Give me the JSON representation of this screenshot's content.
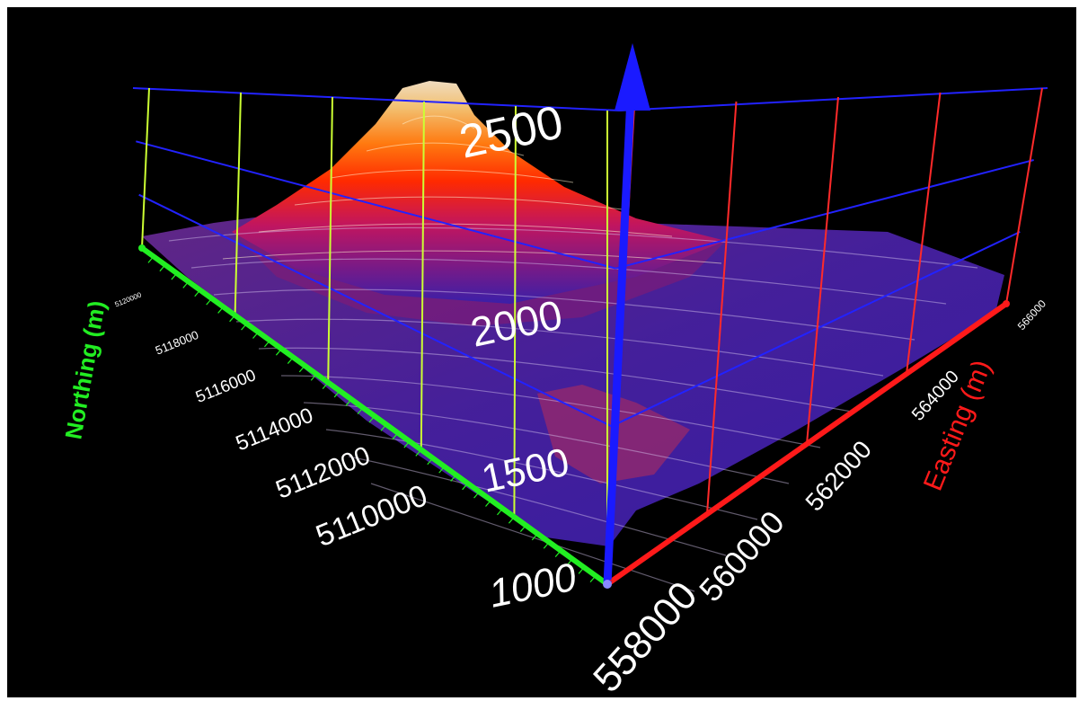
{
  "colors": {
    "background": "#000000",
    "northing_axis": "#22ee22",
    "easting_axis": "#ff1a1a",
    "elevation_axis": "#1a1aff",
    "northing_grid": "#ccff33",
    "easting_grid": "#ff2a2a",
    "elevation_grid": "#2222ff",
    "northing_label": "#22ee22",
    "easting_label": "#ff1a1a",
    "tick_label": "#ffffff",
    "surface_low": "#3a1fa8",
    "surface_mid": "#c01560",
    "surface_high": "#ff2a00",
    "surface_peak": "#f0dcc0"
  },
  "chart_data": {
    "type": "surface",
    "view": "3d-perspective",
    "x_axis": {
      "label": "Easting (m)",
      "ticks": [
        558000,
        560000,
        562000,
        564000,
        566000
      ],
      "tick_labels": [
        "558000",
        "560000",
        "562000",
        "564000",
        "566000"
      ]
    },
    "y_axis": {
      "label": "Northing (m)",
      "ticks": [
        5110000,
        5112000,
        5114000,
        5116000,
        5118000,
        5120000
      ],
      "tick_labels": [
        "5110000",
        "5112000",
        "5114000",
        "5116000",
        "5118000",
        "5120000"
      ]
    },
    "z_axis": {
      "label": "",
      "ticks": [
        1000,
        1500,
        2000,
        2500
      ],
      "tick_labels": [
        "1000",
        "1500",
        "2000",
        "2500"
      ]
    },
    "surface": {
      "description_free": true,
      "peak_elevation_approx": 2600,
      "base_elevation_approx": 1200,
      "colormap": "purple-red-orange-white by elevation"
    },
    "grid": true,
    "legend": "none"
  }
}
